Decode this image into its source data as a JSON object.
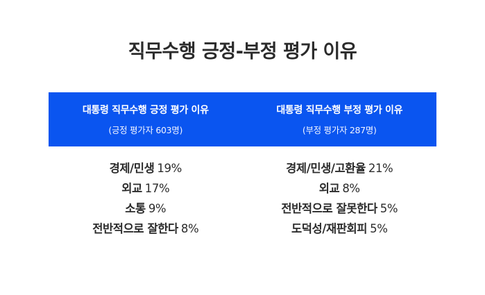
{
  "title": "직무수행 긍정-부정 평가 이유",
  "positive": {
    "heading": "대통령 직무수행 긍정 평가 이유",
    "respondents": "(긍정 평가자 603명)",
    "reasons": [
      {
        "label": "경제/민생",
        "pct": "19%"
      },
      {
        "label": "외교",
        "pct": "17%"
      },
      {
        "label": "소통",
        "pct": "9%"
      },
      {
        "label": "전반적으로 잘한다",
        "pct": "8%"
      }
    ]
  },
  "negative": {
    "heading": "대통령 직무수행 부정 평가 이유",
    "respondents": "(부정 평가자 287명)",
    "reasons": [
      {
        "label": "경제/민생/고환율",
        "pct": "21%"
      },
      {
        "label": "외교",
        "pct": "8%"
      },
      {
        "label": "전반적으로 잘못한다",
        "pct": "5%"
      },
      {
        "label": "도덕성/재판회피",
        "pct": "5%"
      }
    ]
  },
  "colors": {
    "accent": "#0a55f0",
    "text": "#2b2b2b"
  }
}
